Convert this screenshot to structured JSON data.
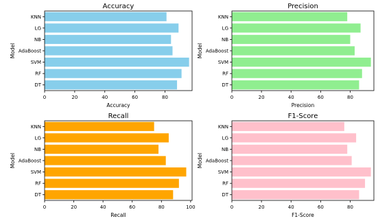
{
  "chart_data": [
    {
      "type": "bar",
      "orientation": "horizontal",
      "title": "Accuracy",
      "xlabel": "Accuracy",
      "ylabel": "Model",
      "categories": [
        "KNN",
        "LG",
        "NB",
        "AdaBoost",
        "SVM",
        "RF",
        "DT"
      ],
      "values": [
        81,
        89,
        84,
        85,
        96,
        91,
        88
      ],
      "xlim": [
        0,
        98
      ],
      "xticks": [
        0,
        20,
        40,
        60,
        80
      ],
      "color": "#87ceeb",
      "grid": false
    },
    {
      "type": "bar",
      "orientation": "horizontal",
      "title": "Precision",
      "xlabel": "Precision",
      "ylabel": "Model",
      "categories": [
        "KNN",
        "LG",
        "NB",
        "AdaBoost",
        "SVM",
        "RF",
        "DT"
      ],
      "values": [
        78,
        87,
        80,
        83,
        94,
        88,
        86
      ],
      "xlim": [
        0,
        96
      ],
      "xticks": [
        0,
        20,
        40,
        60,
        80
      ],
      "color": "#90ee90",
      "grid": false
    },
    {
      "type": "bar",
      "orientation": "horizontal",
      "title": "Recall",
      "xlabel": "Recall",
      "ylabel": "Model",
      "categories": [
        "KNN",
        "LG",
        "NB",
        "AdaBoost",
        "SVM",
        "RF",
        "DT"
      ],
      "values": [
        75,
        85,
        78,
        83,
        97,
        92,
        88
      ],
      "xlim": [
        0,
        101
      ],
      "xticks": [
        0,
        20,
        40,
        60,
        80,
        100
      ],
      "color": "#ffa500",
      "grid": false
    },
    {
      "type": "bar",
      "orientation": "horizontal",
      "title": "F1-Score",
      "xlabel": "F1-Score",
      "ylabel": "Model",
      "categories": [
        "KNN",
        "LG",
        "NB",
        "AdaBoost",
        "SVM",
        "RF",
        "DT"
      ],
      "values": [
        76,
        84,
        78,
        81,
        94,
        90,
        86
      ],
      "xlim": [
        0,
        96
      ],
      "xticks": [
        0,
        20,
        40,
        60,
        80
      ],
      "color": "#ffc0cb",
      "grid": false
    }
  ]
}
